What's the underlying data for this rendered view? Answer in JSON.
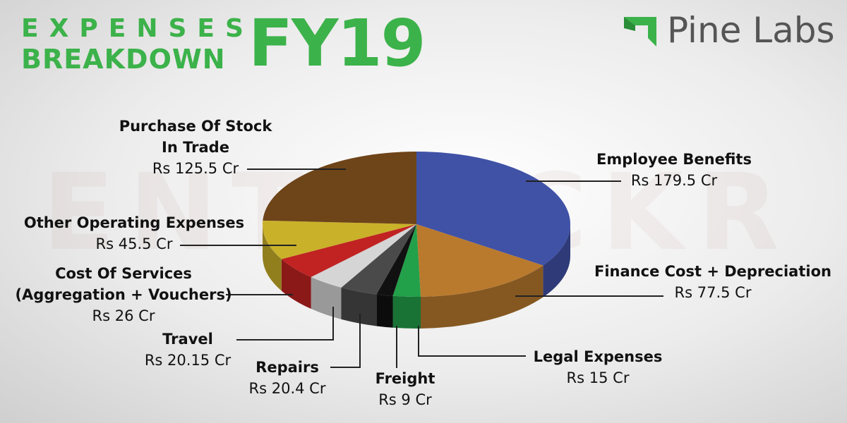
{
  "chart_data": {
    "type": "pie3d",
    "title": [
      "EXPENSES",
      "BREAKDOWN"
    ],
    "subtitle": "FY19",
    "categories": [
      "Employee Benefits",
      "Finance Cost + Depreciation",
      "Legal Expenses",
      "Freight",
      "Repairs",
      "Travel",
      "Cost Of Services (Aggregation + Vouchers)",
      "Other Operating Expenses",
      "Purchase Of Stock In Trade"
    ],
    "values": [
      179.5,
      77.5,
      15,
      9,
      20.4,
      20.15,
      26,
      45.5,
      125.5
    ],
    "value_labels": [
      "Rs 179.5 Cr",
      "Rs 77.5 Cr",
      "Rs 15 Cr",
      "Rs 9 Cr",
      "Rs 20.4 Cr",
      "Rs 20.15 Cr",
      "Rs 26 Cr",
      "Rs 45.5 Cr",
      "Rs 125.5 Cr"
    ],
    "colors": [
      "#4052a6",
      "#b97a2e",
      "#23a04a",
      "#111111",
      "#4a4a4a",
      "#d5d5d5",
      "#c02322",
      "#c9b12a",
      "#6e4419"
    ]
  },
  "brand": "Pine Labs",
  "watermark": "ENTRACKR"
}
